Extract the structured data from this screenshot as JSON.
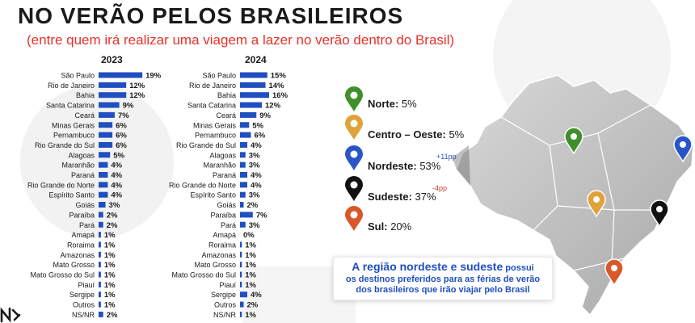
{
  "header": {
    "title": "NO VERÃO PELOS BRASILEIROS",
    "subtitle": "(entre quem irá realizar uma viagem a lazer no verão dentro do Brasil)"
  },
  "chart_data": [
    {
      "type": "bar",
      "orientation": "horizontal",
      "title": "2023",
      "categories": [
        "São Paulo",
        "Rio de Janeiro",
        "Bahia",
        "Santa Catarina",
        "Ceará",
        "Minas Gerais",
        "Pernambuco",
        "Rio Grande do Sul",
        "Alagoas",
        "Maranhão",
        "Paraná",
        "Rio Grande do Norte",
        "Espírito Santo",
        "Goiás",
        "Paraíba",
        "Pará",
        "Amapá",
        "Roraima",
        "Amazonas",
        "Mato Grosso",
        "Mato Grosso do Sul",
        "Piauí",
        "Sergipe",
        "Outros",
        "NS/NR"
      ],
      "values": [
        19,
        12,
        12,
        9,
        7,
        6,
        6,
        6,
        5,
        4,
        4,
        4,
        4,
        3,
        2,
        2,
        1,
        1,
        1,
        1,
        1,
        1,
        1,
        1,
        2
      ],
      "value_labels": [
        "19%",
        "12%",
        "12%",
        "9%",
        "7%",
        "6%",
        "6%",
        "6%",
        "5%",
        "4%",
        "4%",
        "4%",
        "4%",
        "3%",
        "2%",
        "2%",
        "1%",
        "1%",
        "1%",
        "1%",
        "1%",
        "1%",
        "1%",
        "1%",
        "2%"
      ],
      "unit": "%",
      "color": "#1f4fc0"
    },
    {
      "type": "bar",
      "orientation": "horizontal",
      "title": "2024",
      "categories": [
        "São Paulo",
        "Rio de Janeiro",
        "Bahia",
        "Santa Catarina",
        "Ceará",
        "Minas Gerais",
        "Pernambuco",
        "Rio Grande do Sul",
        "Alagoas",
        "Maranhão",
        "Paraná",
        "Rio Grande do Norte",
        "Espírito Santo",
        "Goiás",
        "Paraíba",
        "Pará",
        "Amapá",
        "Roraima",
        "Amazonas",
        "Mato Grosso",
        "Mato Grosso do Sul",
        "Piauí",
        "Sergipe",
        "Outros",
        "NS/NR"
      ],
      "values": [
        15,
        14,
        16,
        12,
        9,
        5,
        6,
        4,
        3,
        3,
        4,
        4,
        3,
        2,
        7,
        3,
        0,
        1,
        1,
        1,
        1,
        1,
        4,
        2,
        1
      ],
      "value_labels": [
        "15%",
        "14%",
        "16%",
        "12%",
        "9%",
        "5%",
        "6%",
        "4%",
        "3%",
        "3%",
        "4%",
        "4%",
        "3%",
        "2%",
        "7%",
        "3%",
        "0%",
        "1%",
        "1%",
        "1%",
        "1%",
        "1%",
        "4%",
        "2%",
        "1%"
      ],
      "unit": "%",
      "color": "#1f4fc0"
    }
  ],
  "regions": [
    {
      "name": "Norte",
      "value": "5%",
      "delta": "",
      "color": "#3f8f2b",
      "icon": "map-pin-icon"
    },
    {
      "name": "Centro – Oeste",
      "value": "5%",
      "delta": "",
      "color": "#e0a23a",
      "icon": "map-pin-icon"
    },
    {
      "name": "Nordeste",
      "value": "53%",
      "delta": "+11pp",
      "delta_dir": "up",
      "color": "#2a55c8",
      "icon": "map-pin-icon"
    },
    {
      "name": "Sudeste",
      "value": "37%",
      "delta": "-4pp",
      "delta_dir": "down",
      "color": "#111111",
      "icon": "map-pin-icon"
    },
    {
      "name": "Sul",
      "value": "20%",
      "delta": "",
      "color": "#d8582a",
      "icon": "map-pin-icon"
    }
  ],
  "callout": {
    "highlight": "A região nordeste e sudeste",
    "rest1": " possui",
    "line2": "os destinos preferidos para as férias de verão",
    "line3": "dos brasileiros que irão viajar pelo Brasil"
  },
  "logo": {
    "text": "N",
    "icon": "brand-logo-icon"
  }
}
